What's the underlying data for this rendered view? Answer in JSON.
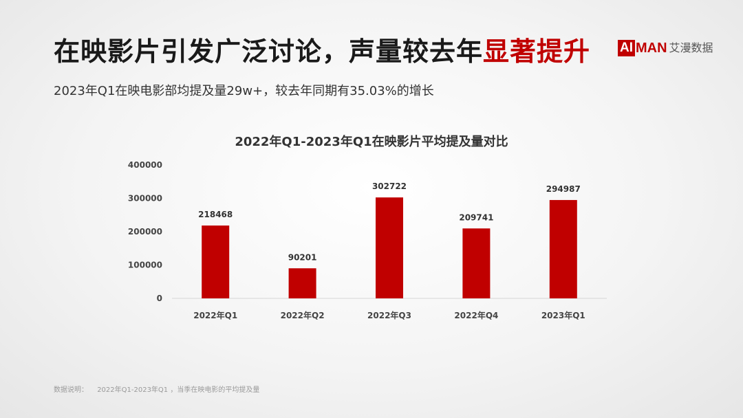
{
  "headline": {
    "main": "在映影片引发广泛讨论，声量较去年",
    "highlight": "显著提升"
  },
  "logo": {
    "ai": "AI",
    "man": "MAN",
    "cn": "艾漫数据"
  },
  "subtitle": "2023年Q1在映电影部均提及量29w+，较去年同期有35.03%的增长",
  "footnote": {
    "label": "数据说明：",
    "text": "2022年Q1-2023年Q1 ，当季在映电影的平均提及量"
  },
  "colors": {
    "accent": "#c00000",
    "bar": "#c00000"
  },
  "chart_data": {
    "type": "bar",
    "title": "2022年Q1-2023年Q1在映影片平均提及量对比",
    "categories": [
      "2022年Q1",
      "2022年Q2",
      "2022年Q3",
      "2022年Q4",
      "2023年Q1"
    ],
    "values": [
      218468,
      90201,
      302722,
      209741,
      294987
    ],
    "ylim": [
      0,
      400000
    ],
    "yticks": [
      0,
      100000,
      200000,
      300000,
      400000
    ],
    "grid": false,
    "legend": "none"
  }
}
